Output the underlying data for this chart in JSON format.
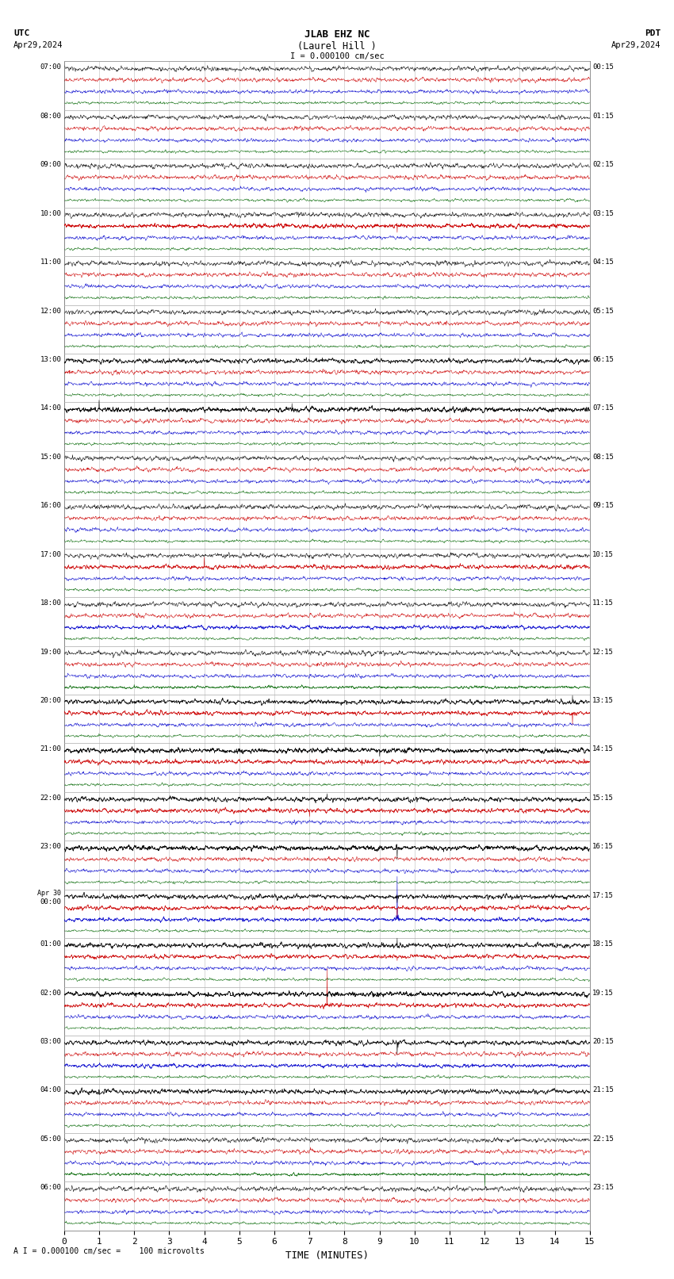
{
  "title_line1": "JLAB EHZ NC",
  "title_line2": "(Laurel Hill )",
  "scale_label": "I = 0.000100 cm/sec",
  "utc_label": "UTC",
  "utc_date": "Apr29,2024",
  "pdt_label": "PDT",
  "pdt_date": "Apr29,2024",
  "footer_label": "A I = 0.000100 cm/sec =    100 microvolts",
  "xlabel": "TIME (MINUTES)",
  "xlim": [
    0,
    15
  ],
  "xticks": [
    0,
    1,
    2,
    3,
    4,
    5,
    6,
    7,
    8,
    9,
    10,
    11,
    12,
    13,
    14,
    15
  ],
  "bg_color": "#ffffff",
  "trace_colors": [
    "#000000",
    "#cc0000",
    "#0000cc",
    "#006600"
  ],
  "grid_color": "#aaaaaa",
  "num_rows": 24,
  "traces_per_row": 4,
  "row_labels_left": [
    "07:00",
    "08:00",
    "09:00",
    "10:00",
    "11:00",
    "12:00",
    "13:00",
    "14:00",
    "15:00",
    "16:00",
    "17:00",
    "18:00",
    "19:00",
    "20:00",
    "21:00",
    "22:00",
    "23:00",
    "Apr 30\n00:00",
    "01:00",
    "02:00",
    "03:00",
    "04:00",
    "05:00",
    "06:00"
  ],
  "row_labels_right": [
    "00:15",
    "01:15",
    "02:15",
    "03:15",
    "04:15",
    "05:15",
    "06:15",
    "07:15",
    "08:15",
    "09:15",
    "10:15",
    "11:15",
    "12:15",
    "13:15",
    "14:15",
    "15:15",
    "16:15",
    "17:15",
    "18:15",
    "19:15",
    "20:15",
    "21:15",
    "22:15",
    "23:15"
  ],
  "figsize": [
    8.5,
    16.13
  ],
  "dpi": 100
}
